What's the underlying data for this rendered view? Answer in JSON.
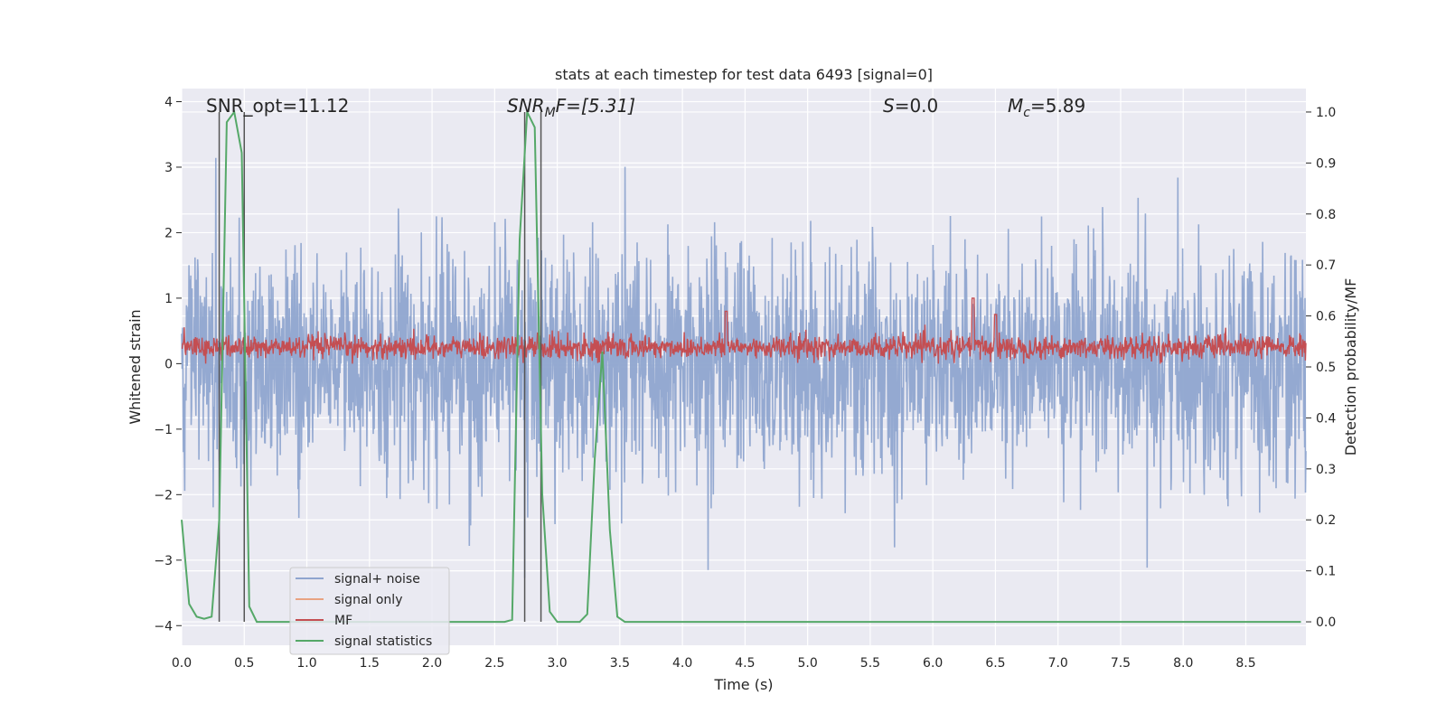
{
  "chart_data": {
    "type": "line",
    "title": "stats at each timestep for test data 6493 [signal=0]",
    "xlabel": "Time (s)",
    "ylabel_left": "Whitened strain",
    "ylabel_right": "Detection probability/MF",
    "xlim": [
      0.0,
      8.98
    ],
    "ylim_left": [
      -4.3,
      4.2
    ],
    "ylim_right": [
      -0.046,
      1.046
    ],
    "x_ticks": [
      "0.0",
      "0.5",
      "1.0",
      "1.5",
      "2.0",
      "2.5",
      "3.0",
      "3.5",
      "4.0",
      "4.5",
      "5.0",
      "5.5",
      "6.0",
      "6.5",
      "7.0",
      "7.5",
      "8.0",
      "8.5"
    ],
    "y_left_ticks": [
      "4",
      "3",
      "2",
      "1",
      "0",
      "−1",
      "−2",
      "−3",
      "−4"
    ],
    "y_right_ticks": [
      "1.0",
      "0.9",
      "0.8",
      "0.7",
      "0.6",
      "0.5",
      "0.4",
      "0.3",
      "0.2",
      "0.1",
      "0.0"
    ],
    "grid": true,
    "legend_position": "lower-left",
    "legend": [
      {
        "name": "signal+ noise",
        "color": "#8fa5cf"
      },
      {
        "name": "signal only",
        "color": "#e8a382"
      },
      {
        "name": "MF",
        "color": "#c44e52"
      },
      {
        "name": "signal statistics",
        "color": "#55a868"
      }
    ],
    "annotations": {
      "snr_opt": "SNR_opt=11.12",
      "snr_mf_base": "SNR",
      "snr_mf_sub": "M",
      "snr_mf_rest": "F=[5.31]",
      "s_italic": "S",
      "s_rest": "=0.0",
      "mc_italic": "M",
      "mc_sub": "c",
      "mc_rest": "=5.89"
    },
    "vertical_lines_x": [
      0.3,
      0.5,
      2.74,
      2.87
    ],
    "series": [
      {
        "name": "signal statistics",
        "axis": "right",
        "x": [
          0.0,
          0.06,
          0.12,
          0.18,
          0.24,
          0.3,
          0.36,
          0.42,
          0.48,
          0.54,
          0.6,
          0.66,
          0.72,
          0.78,
          0.84,
          0.9,
          0.96,
          1.02,
          1.08,
          1.14,
          1.2,
          1.26,
          1.32,
          1.38,
          1.44,
          1.5,
          1.56,
          1.62,
          1.68,
          1.74,
          1.8,
          1.86,
          1.92,
          1.98,
          2.04,
          2.1,
          2.16,
          2.22,
          2.28,
          2.34,
          2.4,
          2.46,
          2.52,
          2.58,
          2.64,
          2.7,
          2.76,
          2.82,
          2.88,
          2.94,
          3.0,
          3.06,
          3.12,
          3.18,
          3.24,
          3.3,
          3.36,
          3.42,
          3.48,
          3.54,
          3.6,
          3.66,
          3.72,
          3.78,
          3.84,
          3.9,
          3.96,
          4.02,
          4.08,
          4.14,
          4.2,
          4.26,
          4.32,
          4.38,
          4.44,
          4.5,
          4.56,
          4.62,
          4.68,
          4.74,
          4.8,
          4.86,
          4.92,
          4.98,
          5.04,
          5.1,
          5.16,
          5.22,
          5.28,
          5.34,
          5.4,
          5.46,
          5.52,
          5.58,
          5.64,
          5.7,
          5.76,
          5.82,
          5.88,
          5.94,
          6.0,
          6.06,
          6.12,
          6.18,
          6.24,
          6.3,
          6.36,
          6.42,
          6.48,
          6.54,
          6.6,
          6.66,
          6.72,
          6.78,
          6.84,
          6.9,
          6.96,
          7.02,
          7.08,
          7.14,
          7.2,
          7.26,
          7.32,
          7.38,
          7.44,
          7.5,
          7.56,
          7.62,
          7.68,
          7.74,
          7.8,
          7.86,
          7.92,
          7.98,
          8.04,
          8.1,
          8.16,
          8.22,
          8.28,
          8.34,
          8.4,
          8.46,
          8.52,
          8.58,
          8.64,
          8.7,
          8.76,
          8.82,
          8.88,
          8.94
        ],
        "y": [
          0.2,
          0.035,
          0.01,
          0.006,
          0.01,
          0.2,
          0.98,
          1.0,
          0.92,
          0.03,
          0.0,
          0.0,
          0.0,
          0.0,
          0.0,
          0.0,
          0.0,
          0.0,
          0.0,
          0.0,
          0.0,
          0.0,
          0.0,
          0.0,
          0.0,
          0.0,
          0.0,
          0.0,
          0.0,
          0.0,
          0.0,
          0.0,
          0.0,
          0.0,
          0.0,
          0.0,
          0.0,
          0.0,
          0.0,
          0.0,
          0.0,
          0.0,
          0.0,
          0.0,
          0.004,
          0.75,
          1.0,
          0.97,
          0.25,
          0.02,
          0.0,
          0.0,
          0.0,
          0.0,
          0.015,
          0.32,
          0.53,
          0.18,
          0.01,
          0.0,
          0.0,
          0.0,
          0.0,
          0.0,
          0.0,
          0.0,
          0.0,
          0.0,
          0.0,
          0.0,
          0.0,
          0.0,
          0.0,
          0.0,
          0.0,
          0.0,
          0.0,
          0.0,
          0.0,
          0.0,
          0.0,
          0.0,
          0.0,
          0.0,
          0.0,
          0.0,
          0.0,
          0.0,
          0.0,
          0.0,
          0.0,
          0.0,
          0.0,
          0.0,
          0.0,
          0.0,
          0.0,
          0.0,
          0.0,
          0.0,
          0.0,
          0.0,
          0.0,
          0.0,
          0.0,
          0.0,
          0.0,
          0.0,
          0.0,
          0.0,
          0.0,
          0.0,
          0.0,
          0.0,
          0.0,
          0.0,
          0.0,
          0.0,
          0.0,
          0.0,
          0.0,
          0.0,
          0.0,
          0.0,
          0.0,
          0.0,
          0.0,
          0.0,
          0.0,
          0.0,
          0.0,
          0.0,
          0.0,
          0.0,
          0.0,
          0.0,
          0.0,
          0.0,
          0.0,
          0.0,
          0.0,
          0.0,
          0.0,
          0.0,
          0.0,
          0.0,
          0.0,
          0.0,
          0.0,
          0.0
        ]
      },
      {
        "name": "signal+ noise",
        "axis": "left",
        "note": "dense noise trace",
        "noise_sigma": 0.85,
        "peak_max": 3.85,
        "peak_min": -4.0
      },
      {
        "name": "MF",
        "axis": "left",
        "note": "dense matched-filter trace",
        "mean": 0.25,
        "spread": 0.15,
        "peak_max": 1.0
      }
    ]
  }
}
